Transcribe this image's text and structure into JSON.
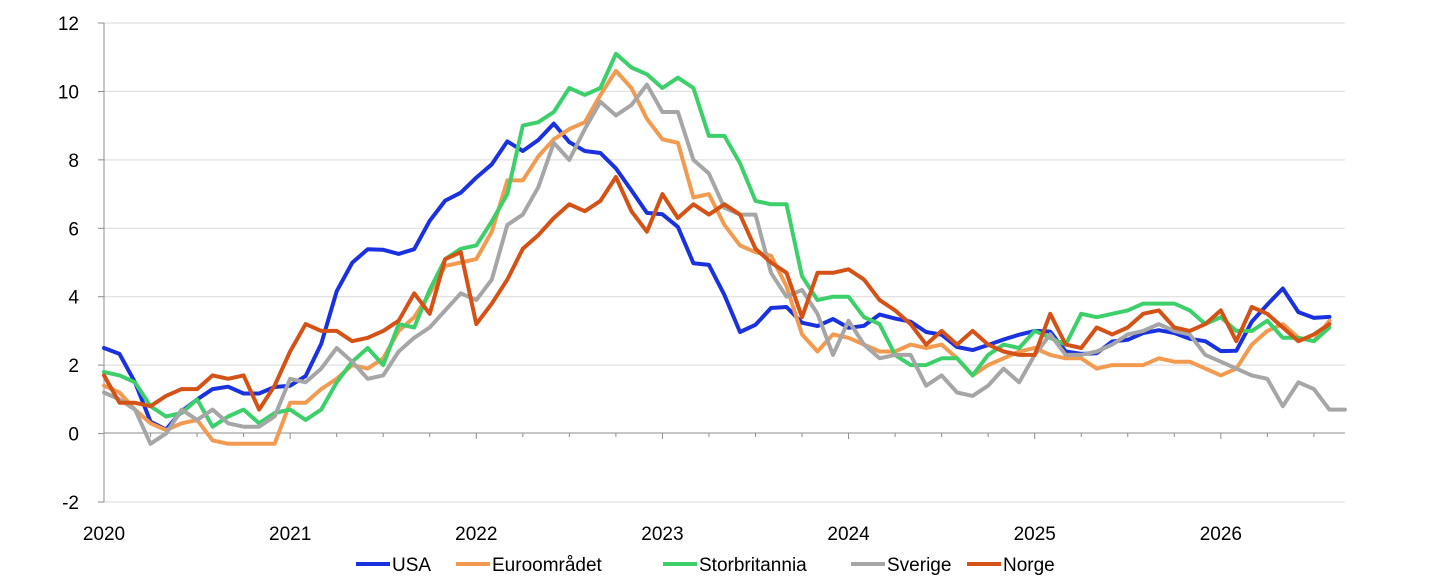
{
  "chart_data": {
    "type": "line",
    "title": "",
    "xlabel": "",
    "ylabel": "",
    "ylim": [
      -2,
      12
    ],
    "yticks": [
      "-2",
      "0",
      "2",
      "4",
      "6",
      "8",
      "10",
      "12"
    ],
    "xlim": [
      2020.0,
      2026.667
    ],
    "xticks": [
      "2020",
      "2021",
      "2022",
      "2023",
      "2024",
      "2025",
      "2026"
    ],
    "grid": "horizontal",
    "legend_position": "bottom",
    "series": [
      {
        "name": "USA",
        "color": "#1a31e0",
        "x_start": 2020.0,
        "x_step": 0.08333,
        "values": [
          2.5,
          2.33,
          1.5,
          0.35,
          0.12,
          0.65,
          1.0,
          1.3,
          1.37,
          1.17,
          1.17,
          1.36,
          1.4,
          1.68,
          2.62,
          4.16,
          4.99,
          5.39,
          5.37,
          5.25,
          5.39,
          6.22,
          6.81,
          7.04,
          7.48,
          7.87,
          8.54,
          8.26,
          8.58,
          9.06,
          8.52,
          8.26,
          8.2,
          7.75,
          7.11,
          6.45,
          6.41,
          6.04,
          4.98,
          4.93,
          4.05,
          2.97,
          3.18,
          3.67,
          3.7,
          3.24,
          3.14,
          3.35,
          3.09,
          3.15,
          3.48,
          3.36,
          3.27,
          2.97,
          2.89,
          2.53,
          2.44,
          2.59,
          2.75,
          2.89,
          3.0,
          2.98,
          2.4,
          2.33,
          2.35,
          2.69,
          2.74,
          2.94,
          3.02,
          2.94,
          2.77,
          2.7,
          2.41,
          2.42,
          3.27,
          3.77,
          4.24,
          3.55,
          3.38,
          3.41
        ]
      },
      {
        "name": "Euroområdet",
        "color": "#f29b50",
        "x_start": 2020.0,
        "x_step": 0.08333,
        "values": [
          1.4,
          1.2,
          0.7,
          0.3,
          0.1,
          0.3,
          0.4,
          -0.2,
          -0.3,
          -0.3,
          -0.3,
          -0.3,
          0.9,
          0.9,
          1.3,
          1.6,
          2.0,
          1.9,
          2.2,
          3.0,
          3.4,
          4.1,
          4.9,
          5.0,
          5.1,
          5.9,
          7.4,
          7.4,
          8.1,
          8.6,
          8.9,
          9.1,
          9.9,
          10.6,
          10.1,
          9.2,
          8.6,
          8.5,
          6.9,
          7.0,
          6.1,
          5.5,
          5.3,
          5.2,
          4.3,
          2.9,
          2.4,
          2.9,
          2.8,
          2.6,
          2.4,
          2.4,
          2.6,
          2.5,
          2.6,
          2.2,
          1.7,
          2.0,
          2.2,
          2.4,
          2.5,
          2.3,
          2.2,
          2.2,
          1.9,
          2.0,
          2.0,
          2.0,
          2.2,
          2.1,
          2.1,
          1.9,
          1.7,
          1.9,
          2.6,
          3.0,
          3.2,
          2.8,
          2.7,
          3.3
        ]
      },
      {
        "name": "Storbritannia",
        "color": "#3ccf6a",
        "x_start": 2020.0,
        "x_step": 0.08333,
        "values": [
          1.8,
          1.7,
          1.5,
          0.8,
          0.5,
          0.6,
          1.0,
          0.2,
          0.5,
          0.7,
          0.3,
          0.6,
          0.7,
          0.4,
          0.7,
          1.5,
          2.1,
          2.5,
          2.0,
          3.2,
          3.1,
          4.2,
          5.1,
          5.4,
          5.5,
          6.2,
          7.0,
          9.0,
          9.1,
          9.4,
          10.1,
          9.9,
          10.1,
          11.1,
          10.7,
          10.5,
          10.1,
          10.4,
          10.1,
          8.7,
          8.7,
          7.9,
          6.8,
          6.7,
          6.7,
          4.6,
          3.9,
          4.0,
          4.0,
          3.4,
          3.2,
          2.3,
          2.0,
          2.0,
          2.2,
          2.2,
          1.7,
          2.3,
          2.6,
          2.5,
          3.0,
          2.8,
          2.6,
          3.5,
          3.4,
          3.5,
          3.6,
          3.8,
          3.8,
          3.8,
          3.6,
          3.2,
          3.4,
          3.0,
          3.0,
          3.3,
          2.8,
          2.8,
          2.7,
          3.1
        ]
      },
      {
        "name": "Sverige",
        "color": "#a6a6a6",
        "x_start": 2020.0,
        "x_step": 0.08333,
        "values": [
          1.2,
          1.0,
          0.7,
          -0.3,
          0.0,
          0.7,
          0.4,
          0.7,
          0.3,
          0.2,
          0.2,
          0.5,
          1.6,
          1.5,
          1.9,
          2.5,
          2.1,
          1.6,
          1.7,
          2.4,
          2.8,
          3.1,
          3.6,
          4.1,
          3.9,
          4.5,
          6.1,
          6.4,
          7.2,
          8.5,
          8.0,
          8.9,
          9.7,
          9.3,
          9.6,
          10.2,
          9.4,
          9.4,
          8.0,
          7.6,
          6.6,
          6.4,
          6.4,
          4.7,
          4.0,
          4.2,
          3.5,
          2.3,
          3.3,
          2.6,
          2.2,
          2.3,
          2.3,
          1.4,
          1.7,
          1.2,
          1.1,
          1.4,
          1.9,
          1.5,
          2.3,
          2.9,
          2.3,
          2.3,
          2.4,
          2.6,
          2.9,
          3.0,
          3.2,
          3.0,
          2.9,
          2.3,
          2.1,
          1.9,
          1.7,
          1.6,
          0.8,
          1.5,
          1.3,
          0.7,
          0.7
        ]
      },
      {
        "name": "Norge",
        "color": "#d45216",
        "x_start": 2020.0,
        "x_step": 0.08333,
        "values": [
          1.7,
          0.9,
          0.9,
          0.8,
          1.1,
          1.3,
          1.3,
          1.7,
          1.6,
          1.7,
          0.7,
          1.4,
          2.4,
          3.2,
          3.0,
          3.0,
          2.7,
          2.8,
          3.0,
          3.3,
          4.1,
          3.5,
          5.1,
          5.3,
          3.2,
          3.8,
          4.5,
          5.4,
          5.8,
          6.3,
          6.7,
          6.5,
          6.8,
          7.5,
          6.5,
          5.9,
          7.0,
          6.3,
          6.7,
          6.4,
          6.7,
          6.4,
          5.4,
          5.0,
          4.7,
          3.4,
          4.7,
          4.7,
          4.8,
          4.5,
          3.9,
          3.6,
          3.2,
          2.6,
          3.0,
          2.6,
          3.0,
          2.6,
          2.4,
          2.3,
          2.3,
          3.5,
          2.6,
          2.5,
          3.1,
          2.9,
          3.1,
          3.5,
          3.6,
          3.1,
          3.0,
          3.2,
          3.6,
          2.7,
          3.7,
          3.5,
          3.1,
          2.7,
          2.9,
          3.2
        ]
      }
    ]
  }
}
